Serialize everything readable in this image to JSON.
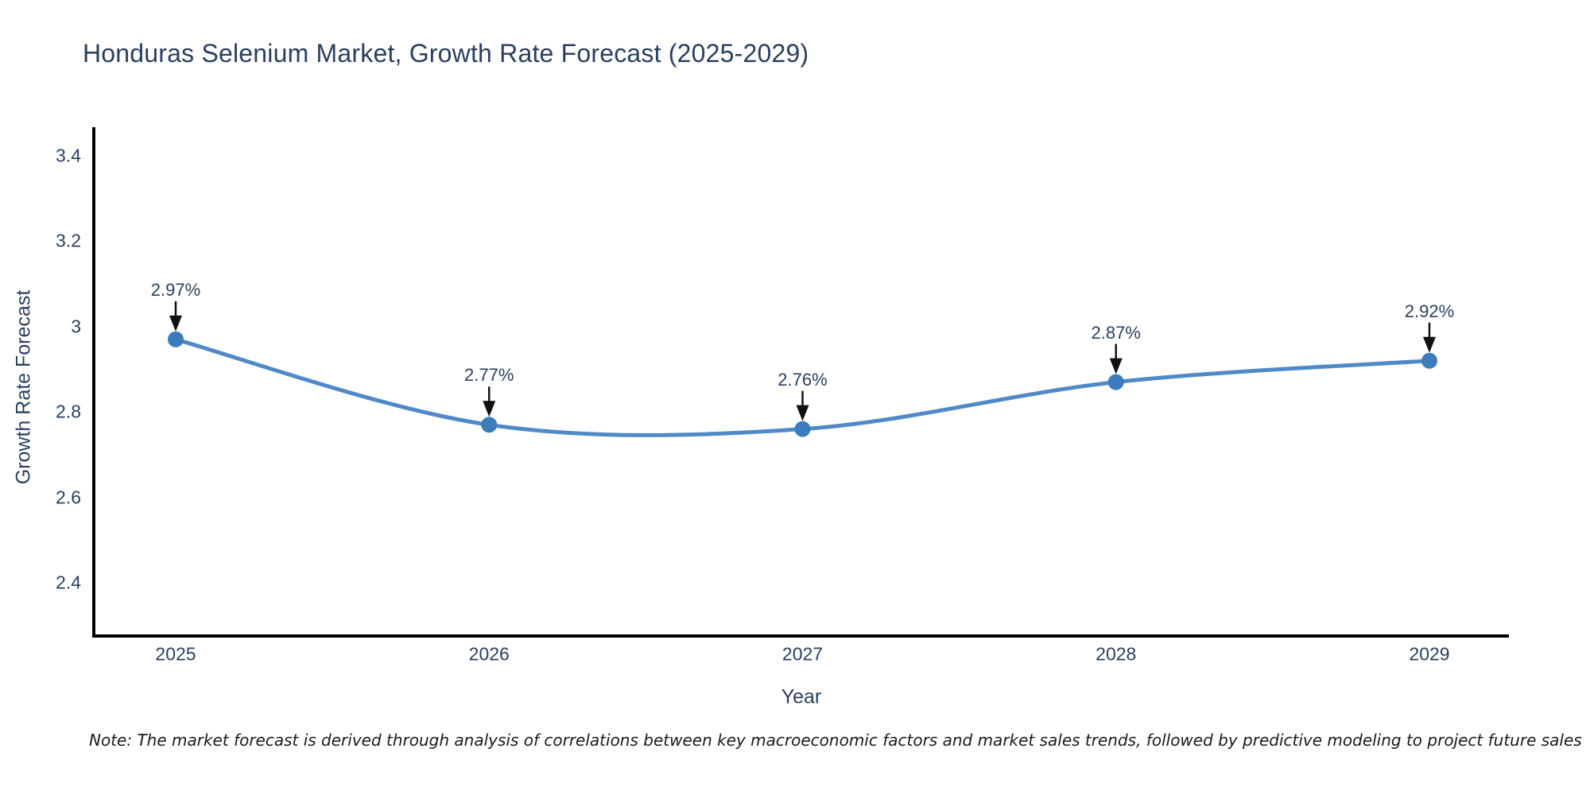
{
  "title": "Honduras Selenium Market, Growth Rate Forecast (2025-2029)",
  "note": "Note: The market forecast is derived through analysis of correlations between key macroeconomic factors and market sales trends, followed by predictive modeling to project future sales",
  "chart_data": {
    "type": "line",
    "title": "Honduras Selenium Market, Growth Rate Forecast (2025-2029)",
    "xlabel": "Year",
    "ylabel": "Growth Rate Forecast",
    "categories": [
      "2025",
      "2026",
      "2027",
      "2028",
      "2029"
    ],
    "series": [
      {
        "name": "Growth Rate Forecast",
        "values": [
          2.97,
          2.77,
          2.76,
          2.87,
          2.92
        ]
      }
    ],
    "point_labels": [
      "2.97%",
      "2.77%",
      "2.76%",
      "2.87%",
      "2.92%"
    ],
    "yticks": [
      3.4,
      3.2,
      3.0,
      2.8,
      2.6,
      2.4
    ],
    "ylim": [
      2.27,
      3.47
    ],
    "grid": false,
    "legend": false,
    "line_style": "spline",
    "marker": "circle",
    "colors": {
      "line": "#5089c7",
      "marker": "#3c7cbc",
      "arrow": "#111111",
      "axis": "#000000",
      "text": "#2a3f5f"
    }
  }
}
